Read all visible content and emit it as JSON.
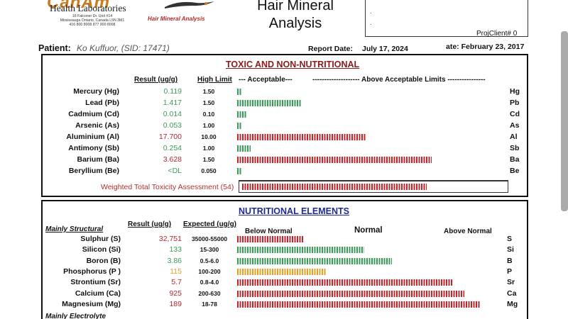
{
  "header": {
    "logo_brand": "CanAm",
    "lab_name": "Health Laboratories",
    "lab_tagline": "Hair Mineral Analysis",
    "lab_address_1": "16 Falconer Dr. Unit #14",
    "lab_address_2": "Mississauga Ontario, Canada L5N 3M1",
    "lab_address_3": "416 800 8008  877 900 8008",
    "title_line1": "Hair Mineral",
    "title_line2": "Analysis",
    "client_dot1": ".",
    "client_dot2": ".",
    "proj_client": "ProjClient# 0"
  },
  "patient": {
    "label": "Patient:",
    "name": "Ko Kuffuor,  (SID: 17471)",
    "report_label": "Report Date:",
    "report_date": "July 17, 2024",
    "date_other": "ate: February 23, 2017"
  },
  "toxic": {
    "title": "TOXIC AND NON-NUTRITIONAL",
    "col_result": "Result (ug/g)",
    "col_limit": "High Limit",
    "col_acceptable": "---  Acceptable---",
    "col_above": "--------------------  Above Acceptable Limits ----------------",
    "rows": [
      {
        "name": "Mercury (Hg)",
        "value": "0.119",
        "limit": "1.50",
        "sym": "Hg",
        "status": "ok",
        "bar_fraction": 0.016
      },
      {
        "name": "Lead (Pb)",
        "value": "1.417",
        "limit": "1.50",
        "sym": "Pb",
        "status": "ok",
        "bar_fraction": 0.24
      },
      {
        "name": "Cadmium (Cd)",
        "value": "0.014",
        "limit": "0.10",
        "sym": "Cd",
        "status": "ok",
        "bar_fraction": 0.035
      },
      {
        "name": "Arsenic (As)",
        "value": "0.053",
        "limit": "1.00",
        "sym": "As",
        "status": "ok",
        "bar_fraction": 0.016
      },
      {
        "name": "Aluminium (Al)",
        "value": "17.700",
        "limit": "10.00",
        "sym": "Al",
        "status": "high",
        "bar_fraction": 0.48
      },
      {
        "name": "Antimony (Sb)",
        "value": "0.254",
        "limit": "1.00",
        "sym": "Sb",
        "status": "ok",
        "bar_fraction": 0.05
      },
      {
        "name": "Barium (Ba)",
        "value": "3.628",
        "limit": "1.50",
        "sym": "Ba",
        "status": "high",
        "bar_fraction": 0.72
      },
      {
        "name": "Beryllium (Be)",
        "value": "<DL",
        "limit": "0.050",
        "sym": "Be",
        "status": "ok",
        "bar_fraction": 0.016
      }
    ],
    "weighted_label": "Weighted Total Toxicity Assessment (54)",
    "weighted_fraction": 0.7
  },
  "nutritional": {
    "title": "NUTRITIONAL ELEMENTS",
    "col_result": "Result (ug/g)",
    "col_expected": "Expected (ug/g)",
    "col_below": "Below Normal",
    "col_normal": "Normal",
    "col_above": "Above  Normal",
    "group_structural": "Mainly Structural",
    "group_electrolyte": "Mainly Electrolyte",
    "rows": [
      {
        "name": "Sulphur (S)",
        "value": "32,751",
        "expected": "35000-55000",
        "sym": "S",
        "status": "low",
        "bar_fraction": 0.24
      },
      {
        "name": "Silicon (Si)",
        "value": "133",
        "expected": "15-300",
        "sym": "Si",
        "status": "normal",
        "bar_fraction": 0.46
      },
      {
        "name": "Boron (B)",
        "value": "3.86",
        "expected": "0.5-6.0",
        "sym": "B",
        "status": "normal",
        "bar_fraction": 0.56
      },
      {
        "name": "Phosphorus (P )",
        "value": "115",
        "expected": "100-200",
        "sym": "P",
        "status": "borderline",
        "bar_fraction": 0.32
      },
      {
        "name": "Strontium (Sr)",
        "value": "5.7",
        "expected": "0.8-4.0",
        "sym": "Sr",
        "status": "high",
        "bar_fraction": 0.78
      },
      {
        "name": "Calcium (Ca)",
        "value": "925",
        "expected": "200-630",
        "sym": "Ca",
        "status": "high",
        "bar_fraction": 0.82
      },
      {
        "name": "Magnesium (Mg)",
        "value": "189",
        "expected": "18-78",
        "sym": "Mg",
        "status": "high",
        "bar_fraction": 0.88
      }
    ]
  },
  "colors": {
    "ok": "#3a9a58",
    "high": "#c0272d",
    "low": "#c0272d",
    "normal": "#3a9a58",
    "borderline": "#e0a020",
    "value_ok": "#3a9a58",
    "value_high": "#b0272d",
    "value_borderline": "#e0a020"
  }
}
